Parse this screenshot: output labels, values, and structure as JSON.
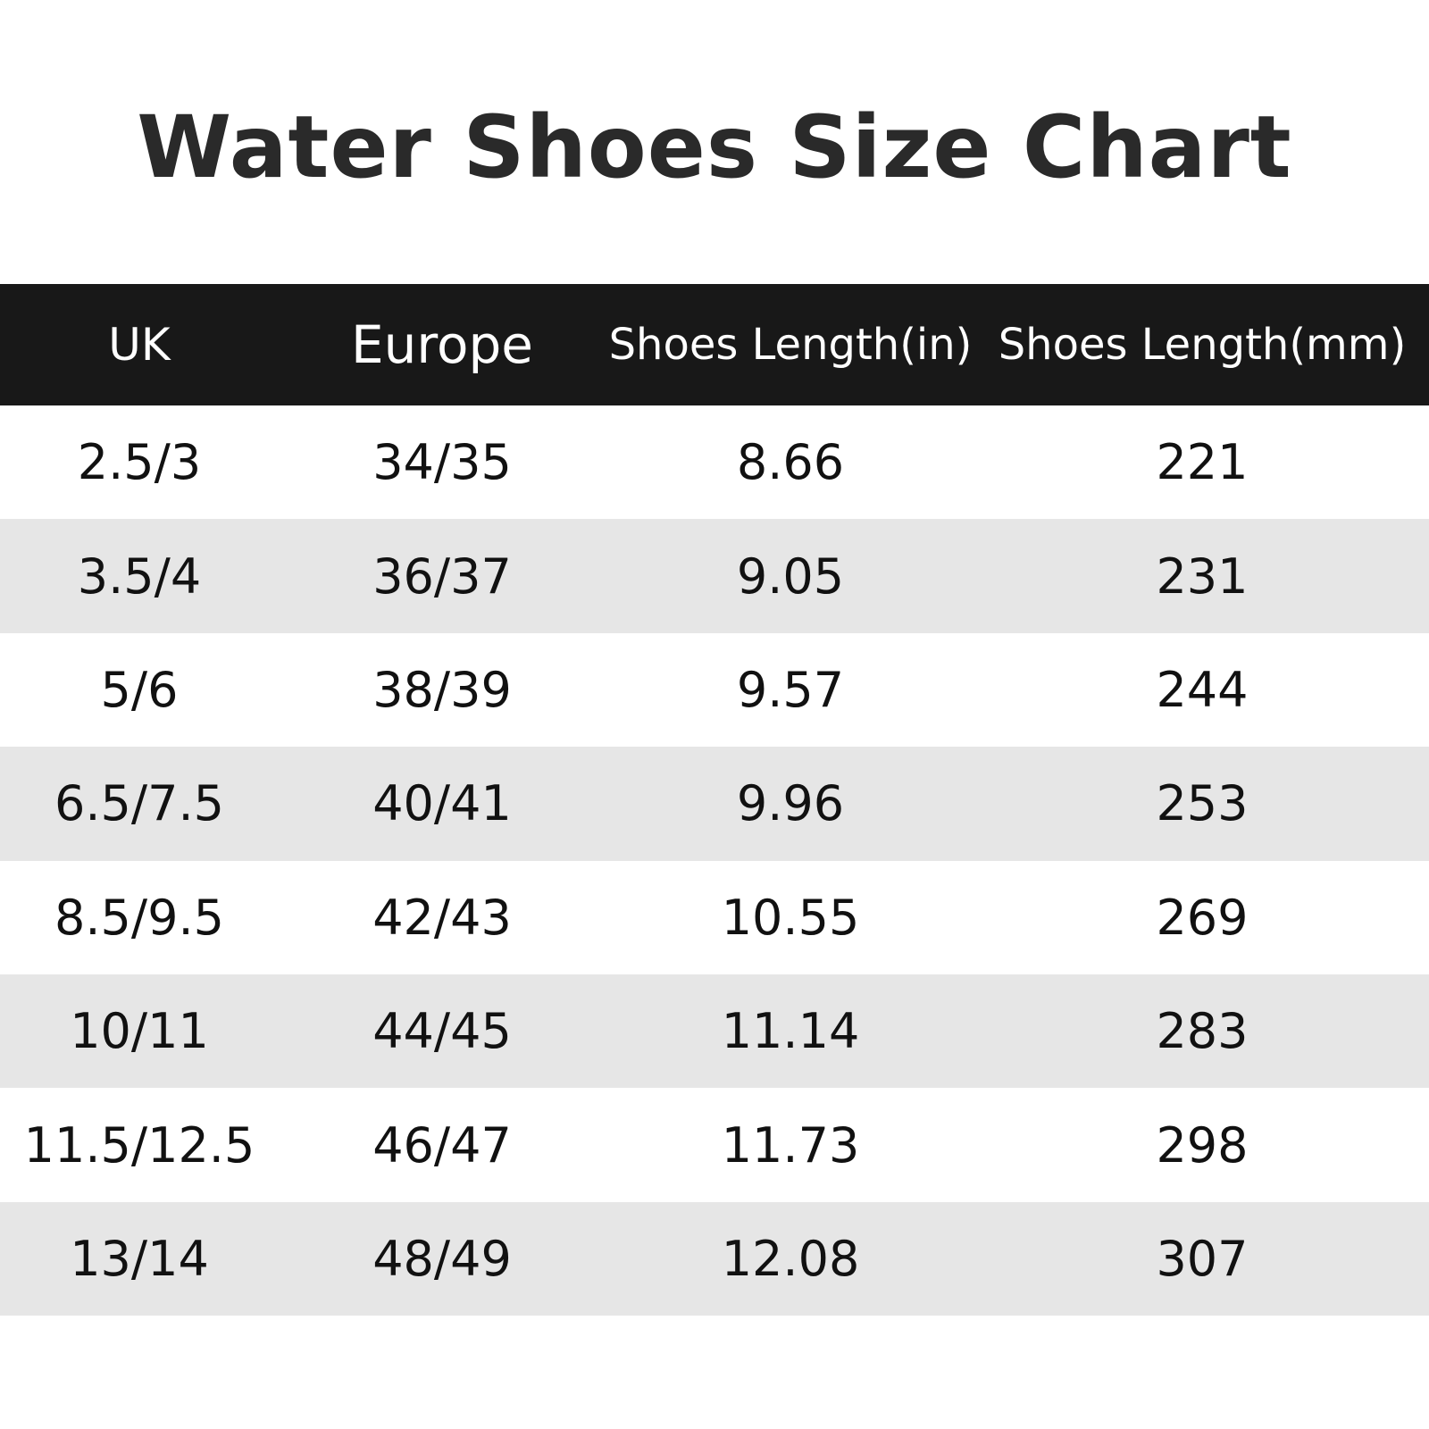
{
  "title": "Water Shoes Size Chart",
  "table": {
    "headers": [
      "UK",
      "Europe",
      "Shoes Length(in)",
      "Shoes Length(mm)"
    ],
    "rows": [
      [
        "2.5/3",
        "34/35",
        "8.66",
        "221"
      ],
      [
        "3.5/4",
        "36/37",
        "9.05",
        "231"
      ],
      [
        "5/6",
        "38/39",
        "9.57",
        "244"
      ],
      [
        "6.5/7.5",
        "40/41",
        "9.96",
        "253"
      ],
      [
        "8.5/9.5",
        "42/43",
        "10.55",
        "269"
      ],
      [
        "10/11",
        "44/45",
        "11.14",
        "283"
      ],
      [
        "11.5/12.5",
        "46/47",
        "11.73",
        "298"
      ],
      [
        "13/14",
        "48/49",
        "12.08",
        "307"
      ]
    ]
  },
  "colors": {
    "header_background": "#181818",
    "header_text": "#ffffff",
    "shaded_row": "#e6e6e6",
    "title_text": "#2a2a2a"
  }
}
